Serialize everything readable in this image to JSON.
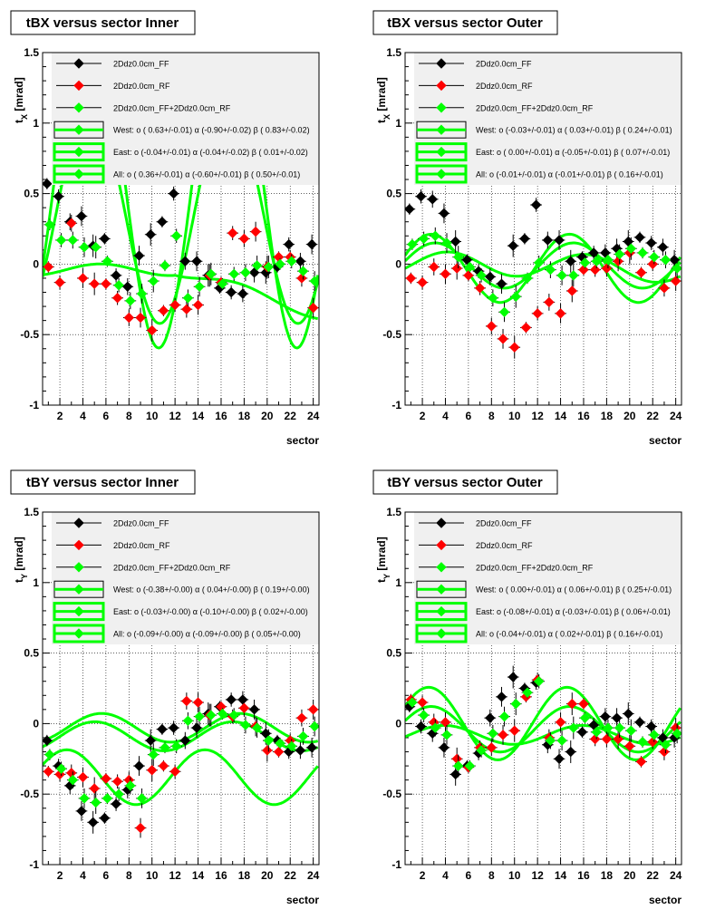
{
  "colors": {
    "FF": "#000000",
    "RF": "#ff0000",
    "FFRF": "#00ff00",
    "legend_bg": "#f0f0f0",
    "frame": "#000000"
  },
  "chart_data": [
    {
      "type": "scatter",
      "title": "tBX versus  sector Inner",
      "xlabel": "sector",
      "ylabel": "t",
      "ylabel_sub": "X",
      "ylabel_unit": " [mrad]",
      "xlim": [
        0.5,
        24.5
      ],
      "ylim": [
        -1,
        1.5
      ],
      "xticks": [
        "2",
        "4",
        "6",
        "8",
        "10",
        "12",
        "14",
        "16",
        "18",
        "20",
        "22",
        "24"
      ],
      "yticks": [
        "-1",
        "-0.5",
        "0",
        "0.5",
        "1",
        "1.5"
      ],
      "grid": "dotted",
      "legend": {
        "position": "top",
        "entries": [
          "2Ddz0.0cm_FF",
          "2Ddz0.0cm_RF",
          "2Ddz0.0cm_FF+2Ddz0.0cm_RF",
          "West: o ( 0.63+/-0.01) α (-0.90+/-0.02) β ( 0.83+/-0.02)",
          "East: o (-0.04+/-0.01) α (-0.04+/-0.02) β ( 0.01+/-0.02)",
          "All: o ( 0.36+/-0.01) α (-0.60+/-0.01) β ( 0.50+/-0.01)"
        ]
      },
      "series": [
        {
          "name": "2Ddz0.0cm_FF",
          "color": "#000000",
          "x": [
            1,
            2,
            3,
            4,
            5,
            6,
            7,
            8,
            9,
            10,
            11,
            12,
            13,
            14,
            15,
            16,
            17,
            18,
            19,
            20,
            21,
            22,
            23,
            24
          ],
          "y": [
            0.57,
            0.48,
            0.3,
            0.34,
            0.13,
            0.18,
            -0.08,
            -0.16,
            0.06,
            0.21,
            0.3,
            0.5,
            0.02,
            0.02,
            -0.08,
            -0.17,
            -0.2,
            -0.21,
            -0.06,
            -0.06,
            -0.02,
            0.14,
            0.02,
            0.14
          ]
        },
        {
          "name": "2Ddz0.0cm_RF",
          "color": "#ff0000",
          "x": [
            1,
            2,
            3,
            4,
            5,
            6,
            7,
            8,
            9,
            10,
            11,
            12,
            13,
            14,
            15,
            16,
            17,
            18,
            19,
            20,
            21,
            22,
            23,
            24
          ],
          "y": [
            -0.02,
            -0.13,
            0.29,
            -0.1,
            -0.14,
            -0.14,
            -0.24,
            -0.38,
            -0.38,
            -0.47,
            -0.33,
            -0.29,
            -0.32,
            -0.29,
            -0.08,
            -0.13,
            0.22,
            0.18,
            0.23,
            -0.02,
            0.05,
            0.05,
            -0.1,
            -0.31
          ]
        },
        {
          "name": "2Ddz0.0cm_FF+2Ddz0.0cm_RF",
          "color": "#00ff00",
          "x": [
            1,
            2,
            3,
            4,
            5,
            6,
            7,
            8,
            9,
            10,
            11,
            12,
            13,
            14,
            15,
            16,
            17,
            18,
            19,
            20,
            21,
            22,
            23,
            24
          ],
          "y": [
            0.28,
            0.17,
            0.17,
            0.12,
            0.12,
            0.02,
            -0.15,
            -0.26,
            -0.21,
            -0.12,
            -0.01,
            0.2,
            -0.24,
            -0.16,
            -0.07,
            -0.14,
            -0.07,
            -0.06,
            -0.01,
            -0.02,
            0.0,
            0.02,
            -0.05,
            -0.12
          ]
        }
      ],
      "fits": [
        {
          "name": "West",
          "o": 0.63,
          "a": -0.9,
          "b": 0.83
        },
        {
          "name": "East",
          "o": -0.04,
          "a": -0.04,
          "b": 0.01
        },
        {
          "name": "All",
          "o": 0.36,
          "a": -0.6,
          "b": 0.5
        }
      ],
      "fit_color": "#00ff00",
      "east_offset": -0.3
    },
    {
      "type": "scatter",
      "title": "tBX versus  sector Outer",
      "xlabel": "sector",
      "ylabel": "t",
      "ylabel_sub": "X",
      "ylabel_unit": " [mrad]",
      "xlim": [
        0.5,
        24.5
      ],
      "ylim": [
        -1,
        1.5
      ],
      "xticks": [
        "2",
        "4",
        "6",
        "8",
        "10",
        "12",
        "14",
        "16",
        "18",
        "20",
        "22",
        "24"
      ],
      "yticks": [
        "-1",
        "-0.5",
        "0",
        "0.5",
        "1",
        "1.5"
      ],
      "grid": "dotted",
      "legend": {
        "position": "top",
        "entries": [
          "2Ddz0.0cm_FF",
          "2Ddz0.0cm_RF",
          "2Ddz0.0cm_FF+2Ddz0.0cm_RF",
          "West: o (-0.03+/-0.01) α ( 0.03+/-0.01) β ( 0.24+/-0.01)",
          "East: o ( 0.00+/-0.01) α (-0.05+/-0.01) β ( 0.07+/-0.01)",
          "All: o (-0.01+/-0.01) α (-0.01+/-0.01) β ( 0.16+/-0.01)"
        ]
      },
      "series": [
        {
          "name": "2Ddz0.0cm_FF",
          "color": "#000000",
          "x": [
            1,
            2,
            3,
            4,
            5,
            6,
            7,
            8,
            9,
            10,
            11,
            12,
            13,
            14,
            15,
            16,
            17,
            18,
            19,
            20,
            21,
            22,
            23,
            24
          ],
          "y": [
            0.39,
            0.48,
            0.46,
            0.36,
            0.16,
            0.03,
            -0.05,
            -0.09,
            -0.14,
            0.13,
            0.18,
            0.42,
            0.17,
            0.17,
            0.02,
            0.05,
            0.08,
            0.08,
            0.11,
            0.16,
            0.19,
            0.15,
            0.12,
            0.03
          ]
        },
        {
          "name": "2Ddz0.0cm_RF",
          "color": "#ff0000",
          "x": [
            1,
            2,
            3,
            4,
            5,
            6,
            7,
            8,
            9,
            10,
            11,
            12,
            13,
            14,
            15,
            16,
            17,
            18,
            19,
            20,
            21,
            22,
            23,
            24
          ],
          "y": [
            -0.1,
            -0.13,
            -0.02,
            -0.07,
            -0.03,
            -0.08,
            -0.17,
            -0.44,
            -0.53,
            -0.59,
            -0.45,
            -0.35,
            -0.27,
            -0.35,
            -0.19,
            -0.04,
            -0.04,
            -0.03,
            0.02,
            0.08,
            -0.06,
            0.0,
            -0.17,
            -0.12
          ]
        },
        {
          "name": "2Ddz0.0cm_FF+2Ddz0.0cm_RF",
          "color": "#00ff00",
          "x": [
            1,
            2,
            3,
            4,
            5,
            6,
            7,
            8,
            9,
            10,
            11,
            12,
            13,
            14,
            15,
            16,
            17,
            18,
            19,
            20,
            21,
            22,
            23,
            24
          ],
          "y": [
            0.14,
            0.18,
            0.2,
            0.15,
            0.05,
            -0.02,
            -0.08,
            -0.24,
            -0.34,
            -0.23,
            -0.1,
            0.01,
            -0.04,
            -0.08,
            -0.08,
            0.01,
            0.02,
            0.03,
            0.07,
            0.11,
            0.08,
            0.05,
            0.03,
            -0.03
          ]
        }
      ],
      "fits": [
        {
          "name": "West",
          "o": -0.03,
          "a": 0.03,
          "b": 0.24
        },
        {
          "name": "East",
          "o": 0.0,
          "a": -0.05,
          "b": 0.07
        },
        {
          "name": "All",
          "o": -0.01,
          "a": -0.01,
          "b": 0.16
        }
      ],
      "fit_color": "#00ff00",
      "east_offset": -0.05
    },
    {
      "type": "scatter",
      "title": "tBY versus  sector Inner",
      "xlabel": "sector",
      "ylabel": "t",
      "ylabel_sub": "Y",
      "ylabel_unit": " [mrad]",
      "xlim": [
        0.5,
        24.5
      ],
      "ylim": [
        -1,
        1.5
      ],
      "xticks": [
        "2",
        "4",
        "6",
        "8",
        "10",
        "12",
        "14",
        "16",
        "18",
        "20",
        "22",
        "24"
      ],
      "yticks": [
        "-1",
        "-0.5",
        "0",
        "0.5",
        "1",
        "1.5"
      ],
      "grid": "dotted",
      "legend": {
        "position": "top",
        "entries": [
          "2Ddz0.0cm_FF",
          "2Ddz0.0cm_RF",
          "2Ddz0.0cm_FF+2Ddz0.0cm_RF",
          "West: o (-0.38+/-0.00) α ( 0.04+/-0.00) β ( 0.19+/-0.00)",
          "East: o (-0.03+/-0.00) α (-0.10+/-0.00) β ( 0.02+/-0.00)",
          "All: o (-0.09+/-0.00) α (-0.09+/-0.00) β ( 0.05+/-0.00)"
        ]
      },
      "series": [
        {
          "name": "2Ddz0.0cm_FF",
          "color": "#000000",
          "x": [
            1,
            2,
            3,
            4,
            5,
            6,
            7,
            8,
            9,
            10,
            11,
            12,
            13,
            14,
            15,
            16,
            17,
            18,
            19,
            20,
            21,
            22,
            23,
            24
          ],
          "y": [
            -0.12,
            -0.3,
            -0.44,
            -0.62,
            -0.7,
            -0.67,
            -0.57,
            -0.47,
            -0.3,
            -0.12,
            -0.04,
            -0.03,
            -0.12,
            -0.03,
            0.07,
            0.12,
            0.17,
            0.17,
            0.1,
            -0.07,
            -0.12,
            -0.2,
            -0.19,
            -0.17
          ]
        },
        {
          "name": "2Ddz0.0cm_RF",
          "color": "#ff0000",
          "x": [
            1,
            2,
            3,
            4,
            5,
            6,
            7,
            8,
            9,
            10,
            11,
            12,
            13,
            14,
            15,
            16,
            17,
            18,
            19,
            20,
            21,
            22,
            23,
            24
          ],
          "y": [
            -0.34,
            -0.36,
            -0.35,
            -0.38,
            -0.46,
            -0.39,
            -0.41,
            -0.4,
            -0.74,
            -0.33,
            -0.3,
            -0.34,
            0.16,
            0.15,
            0.06,
            0.12,
            0.05,
            0.11,
            -0.02,
            -0.19,
            -0.2,
            -0.12,
            0.04,
            0.1
          ]
        },
        {
          "name": "2Ddz0.0cm_FF+2Ddz0.0cm_RF",
          "color": "#00ff00",
          "x": [
            1,
            2,
            3,
            4,
            5,
            6,
            7,
            8,
            9,
            10,
            11,
            12,
            13,
            14,
            15,
            16,
            17,
            18,
            19,
            20,
            21,
            22,
            23,
            24
          ],
          "y": [
            -0.22,
            -0.32,
            -0.4,
            -0.53,
            -0.56,
            -0.53,
            -0.5,
            -0.44,
            -0.53,
            -0.22,
            -0.17,
            -0.16,
            0.02,
            0.05,
            0.06,
            0.07,
            0.06,
            -0.01,
            -0.03,
            -0.12,
            -0.14,
            -0.16,
            -0.09,
            -0.02
          ]
        }
      ],
      "fits": [
        {
          "name": "West",
          "o": -0.38,
          "a": 0.04,
          "b": 0.19
        },
        {
          "name": "East",
          "o": -0.03,
          "a": -0.1,
          "b": 0.02
        },
        {
          "name": "All",
          "o": -0.09,
          "a": -0.09,
          "b": 0.05
        }
      ],
      "fit_color": "#00ff00",
      "east_offset": 0.0
    },
    {
      "type": "scatter",
      "title": "tBY versus  sector Outer",
      "xlabel": "sector",
      "ylabel": "t",
      "ylabel_sub": "Y",
      "ylabel_unit": " [mrad]",
      "xlim": [
        0.5,
        24.5
      ],
      "ylim": [
        -1,
        1.5
      ],
      "xticks": [
        "2",
        "4",
        "6",
        "8",
        "10",
        "12",
        "14",
        "16",
        "18",
        "20",
        "22",
        "24"
      ],
      "yticks": [
        "-1",
        "-0.5",
        "0",
        "0.5",
        "1",
        "1.5"
      ],
      "grid": "dotted",
      "legend": {
        "position": "top",
        "entries": [
          "2Ddz0.0cm_FF",
          "2Ddz0.0cm_RF",
          "2Ddz0.0cm_FF+2Ddz0.0cm_RF",
          "West: o ( 0.00+/-0.01) α ( 0.06+/-0.01) β ( 0.25+/-0.01)",
          "East: o (-0.08+/-0.01) α (-0.03+/-0.01) β ( 0.06+/-0.01)",
          "All: o (-0.04+/-0.01) α ( 0.02+/-0.01) β ( 0.16+/-0.01)"
        ]
      },
      "series": [
        {
          "name": "2Ddz0.0cm_FF",
          "color": "#000000",
          "x": [
            1,
            2,
            3,
            4,
            5,
            6,
            7,
            8,
            9,
            10,
            11,
            12,
            13,
            14,
            15,
            16,
            17,
            18,
            19,
            20,
            21,
            22,
            23,
            24
          ],
          "y": [
            0.12,
            -0.02,
            -0.07,
            -0.17,
            -0.36,
            -0.3,
            -0.21,
            0.04,
            0.19,
            0.33,
            0.25,
            0.29,
            -0.15,
            -0.25,
            -0.2,
            -0.06,
            -0.01,
            0.05,
            0.04,
            0.07,
            0.01,
            -0.02,
            -0.1,
            -0.1
          ]
        },
        {
          "name": "2Ddz0.0cm_RF",
          "color": "#ff0000",
          "x": [
            1,
            2,
            3,
            4,
            5,
            6,
            7,
            8,
            9,
            10,
            11,
            12,
            13,
            14,
            15,
            16,
            17,
            18,
            19,
            20,
            21,
            22,
            23,
            24
          ],
          "y": [
            0.17,
            0.15,
            0.01,
            0.01,
            -0.25,
            -0.31,
            -0.17,
            -0.17,
            -0.08,
            -0.05,
            0.19,
            0.31,
            -0.1,
            0.01,
            0.14,
            0.14,
            -0.11,
            -0.11,
            -0.11,
            -0.16,
            -0.27,
            -0.13,
            -0.2,
            -0.03
          ]
        },
        {
          "name": "2Ddz0.0cm_FF+2Ddz0.0cm_RF",
          "color": "#00ff00",
          "x": [
            1,
            2,
            3,
            4,
            5,
            6,
            7,
            8,
            9,
            10,
            11,
            12,
            13,
            14,
            15,
            16,
            17,
            18,
            19,
            20,
            21,
            22,
            23,
            24
          ],
          "y": [
            0.15,
            0.06,
            -0.03,
            -0.08,
            -0.3,
            -0.3,
            -0.19,
            -0.07,
            0.05,
            0.14,
            0.22,
            0.3,
            -0.12,
            -0.12,
            -0.03,
            0.04,
            -0.06,
            -0.03,
            -0.03,
            -0.05,
            -0.13,
            -0.08,
            -0.15,
            -0.07
          ]
        }
      ],
      "fits": [
        {
          "name": "West",
          "o": 0.0,
          "a": 0.06,
          "b": 0.25
        },
        {
          "name": "East",
          "o": -0.08,
          "a": -0.03,
          "b": 0.06
        },
        {
          "name": "All",
          "o": -0.04,
          "a": 0.02,
          "b": 0.16
        }
      ],
      "fit_color": "#00ff00",
      "east_offset": 0.0
    }
  ]
}
